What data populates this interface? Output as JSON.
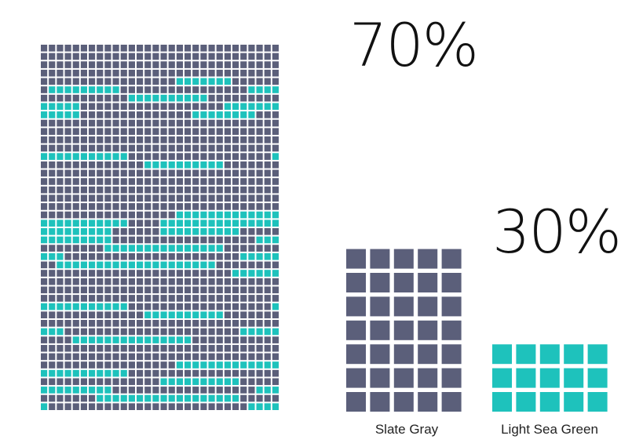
{
  "chart_data": {
    "type": "waffle",
    "categories": [
      "Slate Gray",
      "Light Sea Green"
    ],
    "values": [
      70,
      30
    ],
    "value_labels": [
      "70%",
      "30%"
    ],
    "colors": [
      "#5b5f7a",
      "#1ec2bc"
    ],
    "mosaic": {
      "columns": 30,
      "rows": 44,
      "background_color": "#5b5f7a",
      "accent_color": "#1ec2bc"
    },
    "bar_columns": 5
  }
}
